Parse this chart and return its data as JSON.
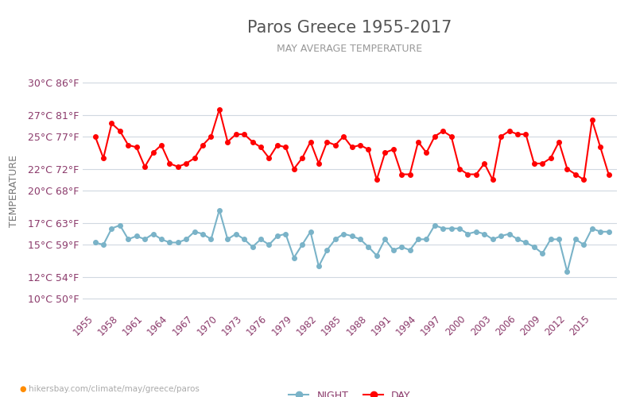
{
  "title": "Paros Greece 1955-2017",
  "subtitle": "MAY AVERAGE TEMPERATURE",
  "ylabel": "TEMPERATURE",
  "footer": "hikersbay.com/climate/may/greece/paros",
  "years": [
    1955,
    1956,
    1957,
    1958,
    1959,
    1960,
    1961,
    1962,
    1963,
    1964,
    1965,
    1966,
    1967,
    1968,
    1969,
    1970,
    1971,
    1972,
    1973,
    1974,
    1975,
    1976,
    1977,
    1978,
    1979,
    1980,
    1981,
    1982,
    1983,
    1984,
    1985,
    1986,
    1987,
    1988,
    1989,
    1990,
    1991,
    1992,
    1993,
    1994,
    1995,
    1996,
    1997,
    1998,
    1999,
    2000,
    2001,
    2002,
    2003,
    2004,
    2005,
    2006,
    2007,
    2008,
    2009,
    2010,
    2011,
    2012,
    2013,
    2014,
    2015,
    2016,
    2017
  ],
  "day": [
    25.0,
    23.0,
    26.2,
    25.5,
    24.2,
    24.0,
    22.2,
    23.5,
    24.2,
    22.5,
    22.2,
    22.5,
    23.0,
    24.2,
    25.0,
    27.5,
    24.5,
    25.2,
    25.2,
    24.5,
    24.0,
    23.0,
    24.2,
    24.0,
    22.0,
    23.0,
    24.5,
    22.5,
    24.5,
    24.2,
    25.0,
    24.0,
    24.2,
    23.8,
    21.0,
    23.5,
    23.8,
    21.5,
    21.5,
    24.5,
    23.5,
    25.0,
    25.5,
    25.0,
    22.0,
    21.5,
    21.5,
    22.5,
    21.0,
    25.0,
    25.5,
    25.2,
    25.2,
    22.5,
    22.5,
    23.0,
    24.5,
    22.0,
    21.5,
    21.0,
    26.5,
    24.0,
    21.5
  ],
  "night": [
    15.2,
    15.0,
    16.5,
    16.8,
    15.5,
    15.8,
    15.5,
    16.0,
    15.5,
    15.2,
    15.2,
    15.5,
    16.2,
    16.0,
    15.5,
    18.2,
    15.5,
    16.0,
    15.5,
    14.8,
    15.5,
    15.0,
    15.8,
    16.0,
    13.8,
    15.0,
    16.2,
    13.0,
    14.5,
    15.5,
    16.0,
    15.8,
    15.5,
    14.8,
    14.0,
    15.5,
    14.5,
    14.8,
    14.5,
    15.5,
    15.5,
    16.8,
    16.5,
    16.5,
    16.5,
    16.0,
    16.2,
    16.0,
    15.5,
    15.8,
    16.0,
    15.5,
    15.2,
    14.8,
    14.2,
    15.5,
    15.5,
    12.5,
    15.5,
    15.0,
    16.5,
    16.2,
    16.2
  ],
  "day_color": "#ff0000",
  "night_color": "#7ab3c8",
  "background_color": "#ffffff",
  "grid_color": "#d0d8e0",
  "title_color": "#555555",
  "subtitle_color": "#999999",
  "ylabel_color": "#777777",
  "tick_color": "#8b3a6b",
  "yticks_c": [
    10,
    12,
    15,
    17,
    20,
    22,
    25,
    27,
    30
  ],
  "ytick_labels": [
    "10°C 50°F",
    "12°C 54°F",
    "15°C 59°F",
    "17°C 63°F",
    "20°C 68°F",
    "22°C 72°F",
    "25°C 77°F",
    "27°C 81°F",
    "30°C 86°F"
  ],
  "ymin": 9,
  "ymax": 31,
  "xtick_years": [
    1955,
    1958,
    1961,
    1964,
    1967,
    1970,
    1973,
    1976,
    1979,
    1982,
    1985,
    1988,
    1991,
    1994,
    1997,
    2000,
    2003,
    2006,
    2009,
    2012,
    2015
  ],
  "legend_night": "NIGHT",
  "legend_day": "DAY",
  "marker_size": 4,
  "line_width": 1.5
}
